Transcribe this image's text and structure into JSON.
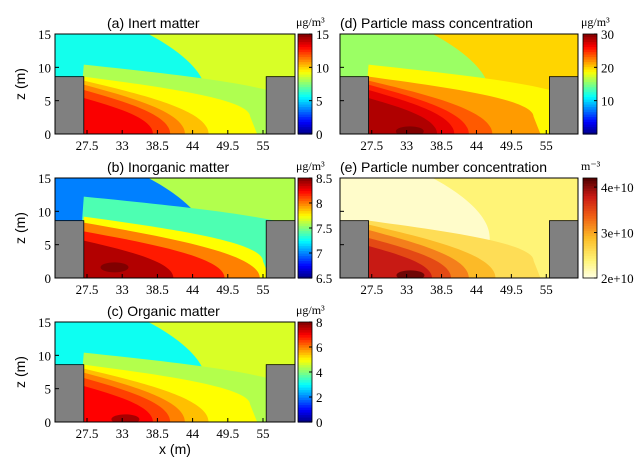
{
  "figure": {
    "xlabel": "x (m)",
    "ylabel": "z (m)",
    "x_ticks": [
      "27.5",
      "33",
      "38.5",
      "44",
      "49.5",
      "55"
    ],
    "y_ticks": [
      "0",
      "5",
      "10",
      "15"
    ]
  },
  "chart_data": [
    {
      "type": "heatmap",
      "title": "(a) Inert matter",
      "unit": "μg/m³",
      "colormap": "jet",
      "colorbar_range": [
        0,
        15
      ],
      "colorbar_ticks": [
        "0",
        "5",
        "10",
        "15"
      ],
      "xlim": [
        22.5,
        60
      ],
      "ylim": [
        0,
        15
      ],
      "buildings": [
        {
          "x": [
            22.5,
            27.0
          ],
          "z": [
            0,
            8.6
          ]
        },
        {
          "x": [
            55.5,
            60
          ],
          "z": [
            0,
            8.6
          ]
        }
      ],
      "background_value": 5.9,
      "far_field_value": 8.8,
      "levels": [
        {
          "value": 8.2,
          "z_top": 10.4,
          "reach": 33.2,
          "z_end": 4.3
        },
        {
          "value": 9.4,
          "z_top": 8.6,
          "reach": 26.0,
          "z_end": 2.6
        },
        {
          "value": 10.3,
          "z_top": 8.0,
          "reach": 19.5,
          "z_end": 0.0
        },
        {
          "value": 11.2,
          "z_top": 7.4,
          "reach": 15.8,
          "z_end": 0.0
        },
        {
          "value": 12.2,
          "z_top": 6.6,
          "reach": 13.5,
          "z_end": 0.0
        },
        {
          "value": 13.2,
          "z_top": 5.4,
          "reach": 10.8,
          "z_end": 0.0
        }
      ],
      "hot_spot": null
    },
    {
      "type": "heatmap",
      "title": "(b) Inorganic matter",
      "unit": "μg/m³",
      "colormap": "jet",
      "colorbar_range": [
        6.5,
        8.5
      ],
      "colorbar_ticks": [
        "6.5",
        "7",
        "7.5",
        "8",
        "8.5"
      ],
      "xlim": [
        22.5,
        60
      ],
      "ylim": [
        0,
        15
      ],
      "buildings": [
        {
          "x": [
            22.5,
            27.0
          ],
          "z": [
            0,
            8.6
          ]
        },
        {
          "x": [
            55.5,
            60
          ],
          "z": [
            0,
            8.6
          ]
        }
      ],
      "background_value": 7.0,
      "far_field_value": 7.6,
      "levels": [
        {
          "value": 7.4,
          "z_top": 12.2,
          "reach": 36.0,
          "z_end": 6.0
        },
        {
          "value": 7.75,
          "z_top": 9.2,
          "reach": 28.0,
          "z_end": 2.5
        },
        {
          "value": 8.0,
          "z_top": 8.3,
          "reach": 27.5,
          "z_end": 0.0
        },
        {
          "value": 8.2,
          "z_top": 7.0,
          "reach": 22.0,
          "z_end": 0.0
        },
        {
          "value": 8.4,
          "z_top": 5.6,
          "reach": 14.0,
          "z_end": 0.0
        }
      ],
      "hot_spot": {
        "x": 31.8,
        "z": 1.6,
        "value": 8.5
      }
    },
    {
      "type": "heatmap",
      "title": "(c) Organic matter",
      "unit": "μg/m³",
      "colormap": "jet",
      "colorbar_range": [
        0,
        8
      ],
      "colorbar_ticks": [
        "0",
        "2",
        "4",
        "6",
        "8"
      ],
      "xlim": [
        22.5,
        60
      ],
      "ylim": [
        0,
        15
      ],
      "buildings": [
        {
          "x": [
            22.5,
            27.0
          ],
          "z": [
            0,
            8.6
          ]
        },
        {
          "x": [
            55.5,
            60
          ],
          "z": [
            0,
            8.6
          ]
        }
      ],
      "background_value": 3.1,
      "far_field_value": 4.7,
      "levels": [
        {
          "value": 4.4,
          "z_top": 10.4,
          "reach": 33.2,
          "z_end": 4.3
        },
        {
          "value": 5.0,
          "z_top": 8.6,
          "reach": 26.0,
          "z_end": 2.6
        },
        {
          "value": 5.5,
          "z_top": 8.0,
          "reach": 19.5,
          "z_end": 0.0
        },
        {
          "value": 6.0,
          "z_top": 7.4,
          "reach": 15.8,
          "z_end": 0.0
        },
        {
          "value": 6.5,
          "z_top": 6.6,
          "reach": 13.5,
          "z_end": 0.0
        },
        {
          "value": 7.0,
          "z_top": 5.4,
          "reach": 10.8,
          "z_end": 0.0
        }
      ],
      "hot_spot": {
        "x": 33.5,
        "z": 0.4,
        "value": 7.7
      }
    },
    {
      "type": "heatmap",
      "title": "(d) Particle mass concentration",
      "unit": "μg/m³",
      "colormap": "jet",
      "colorbar_range": [
        0,
        30
      ],
      "colorbar_ticks": [
        "10",
        "20",
        "30"
      ],
      "xlim": [
        22.5,
        60
      ],
      "ylim": [
        0,
        15
      ],
      "buildings": [
        {
          "x": [
            22.5,
            27.0
          ],
          "z": [
            0,
            8.6
          ]
        },
        {
          "x": [
            55.5,
            60
          ],
          "z": [
            0,
            8.6
          ]
        }
      ],
      "background_value": 15.8,
      "far_field_value": 20.0,
      "levels": [
        {
          "value": 18.9,
          "z_top": 10.4,
          "reach": 33.2,
          "z_end": 4.3
        },
        {
          "value": 21.7,
          "z_top": 8.6,
          "reach": 26.0,
          "z_end": 2.6
        },
        {
          "value": 23.6,
          "z_top": 8.0,
          "reach": 19.5,
          "z_end": 0.0
        },
        {
          "value": 25.3,
          "z_top": 7.4,
          "reach": 15.8,
          "z_end": 0.0
        },
        {
          "value": 27.0,
          "z_top": 6.6,
          "reach": 13.5,
          "z_end": 0.0
        },
        {
          "value": 28.6,
          "z_top": 5.4,
          "reach": 10.8,
          "z_end": 0.0
        }
      ],
      "hot_spot": {
        "x": 33.5,
        "z": 0.4,
        "value": 31
      }
    },
    {
      "type": "heatmap",
      "title": "(e) Particle number concentration",
      "unit": "m⁻³",
      "colormap": "hot",
      "colorbar_range": [
        20000000000.0,
        42000000000.0
      ],
      "colorbar_ticks": [
        "2e+10",
        "3e+10",
        "4e+10"
      ],
      "xlim": [
        22.5,
        60
      ],
      "ylim": [
        0,
        15
      ],
      "buildings": [
        {
          "x": [
            22.5,
            27.0
          ],
          "z": [
            0,
            8.6
          ]
        },
        {
          "x": [
            55.5,
            60
          ],
          "z": [
            0,
            8.6
          ]
        }
      ],
      "background_value": 21000000000.0,
      "far_field_value": 24000000000.0,
      "levels": [
        {
          "value": 26000000000.0,
          "z_top": 8.6,
          "reach": 26.0,
          "z_end": 2.6
        },
        {
          "value": 29000000000.0,
          "z_top": 8.0,
          "reach": 20.0,
          "z_end": 0.0
        },
        {
          "value": 32000000000.0,
          "z_top": 7.2,
          "reach": 15.8,
          "z_end": 0.0
        },
        {
          "value": 35000000000.0,
          "z_top": 6.0,
          "reach": 13.0,
          "z_end": 0.0
        },
        {
          "value": 38000000000.0,
          "z_top": 4.8,
          "reach": 10.0,
          "z_end": 0.0
        }
      ],
      "hot_spot": {
        "x": 33.6,
        "z": 0.4,
        "value": 41000000000.0
      }
    }
  ]
}
